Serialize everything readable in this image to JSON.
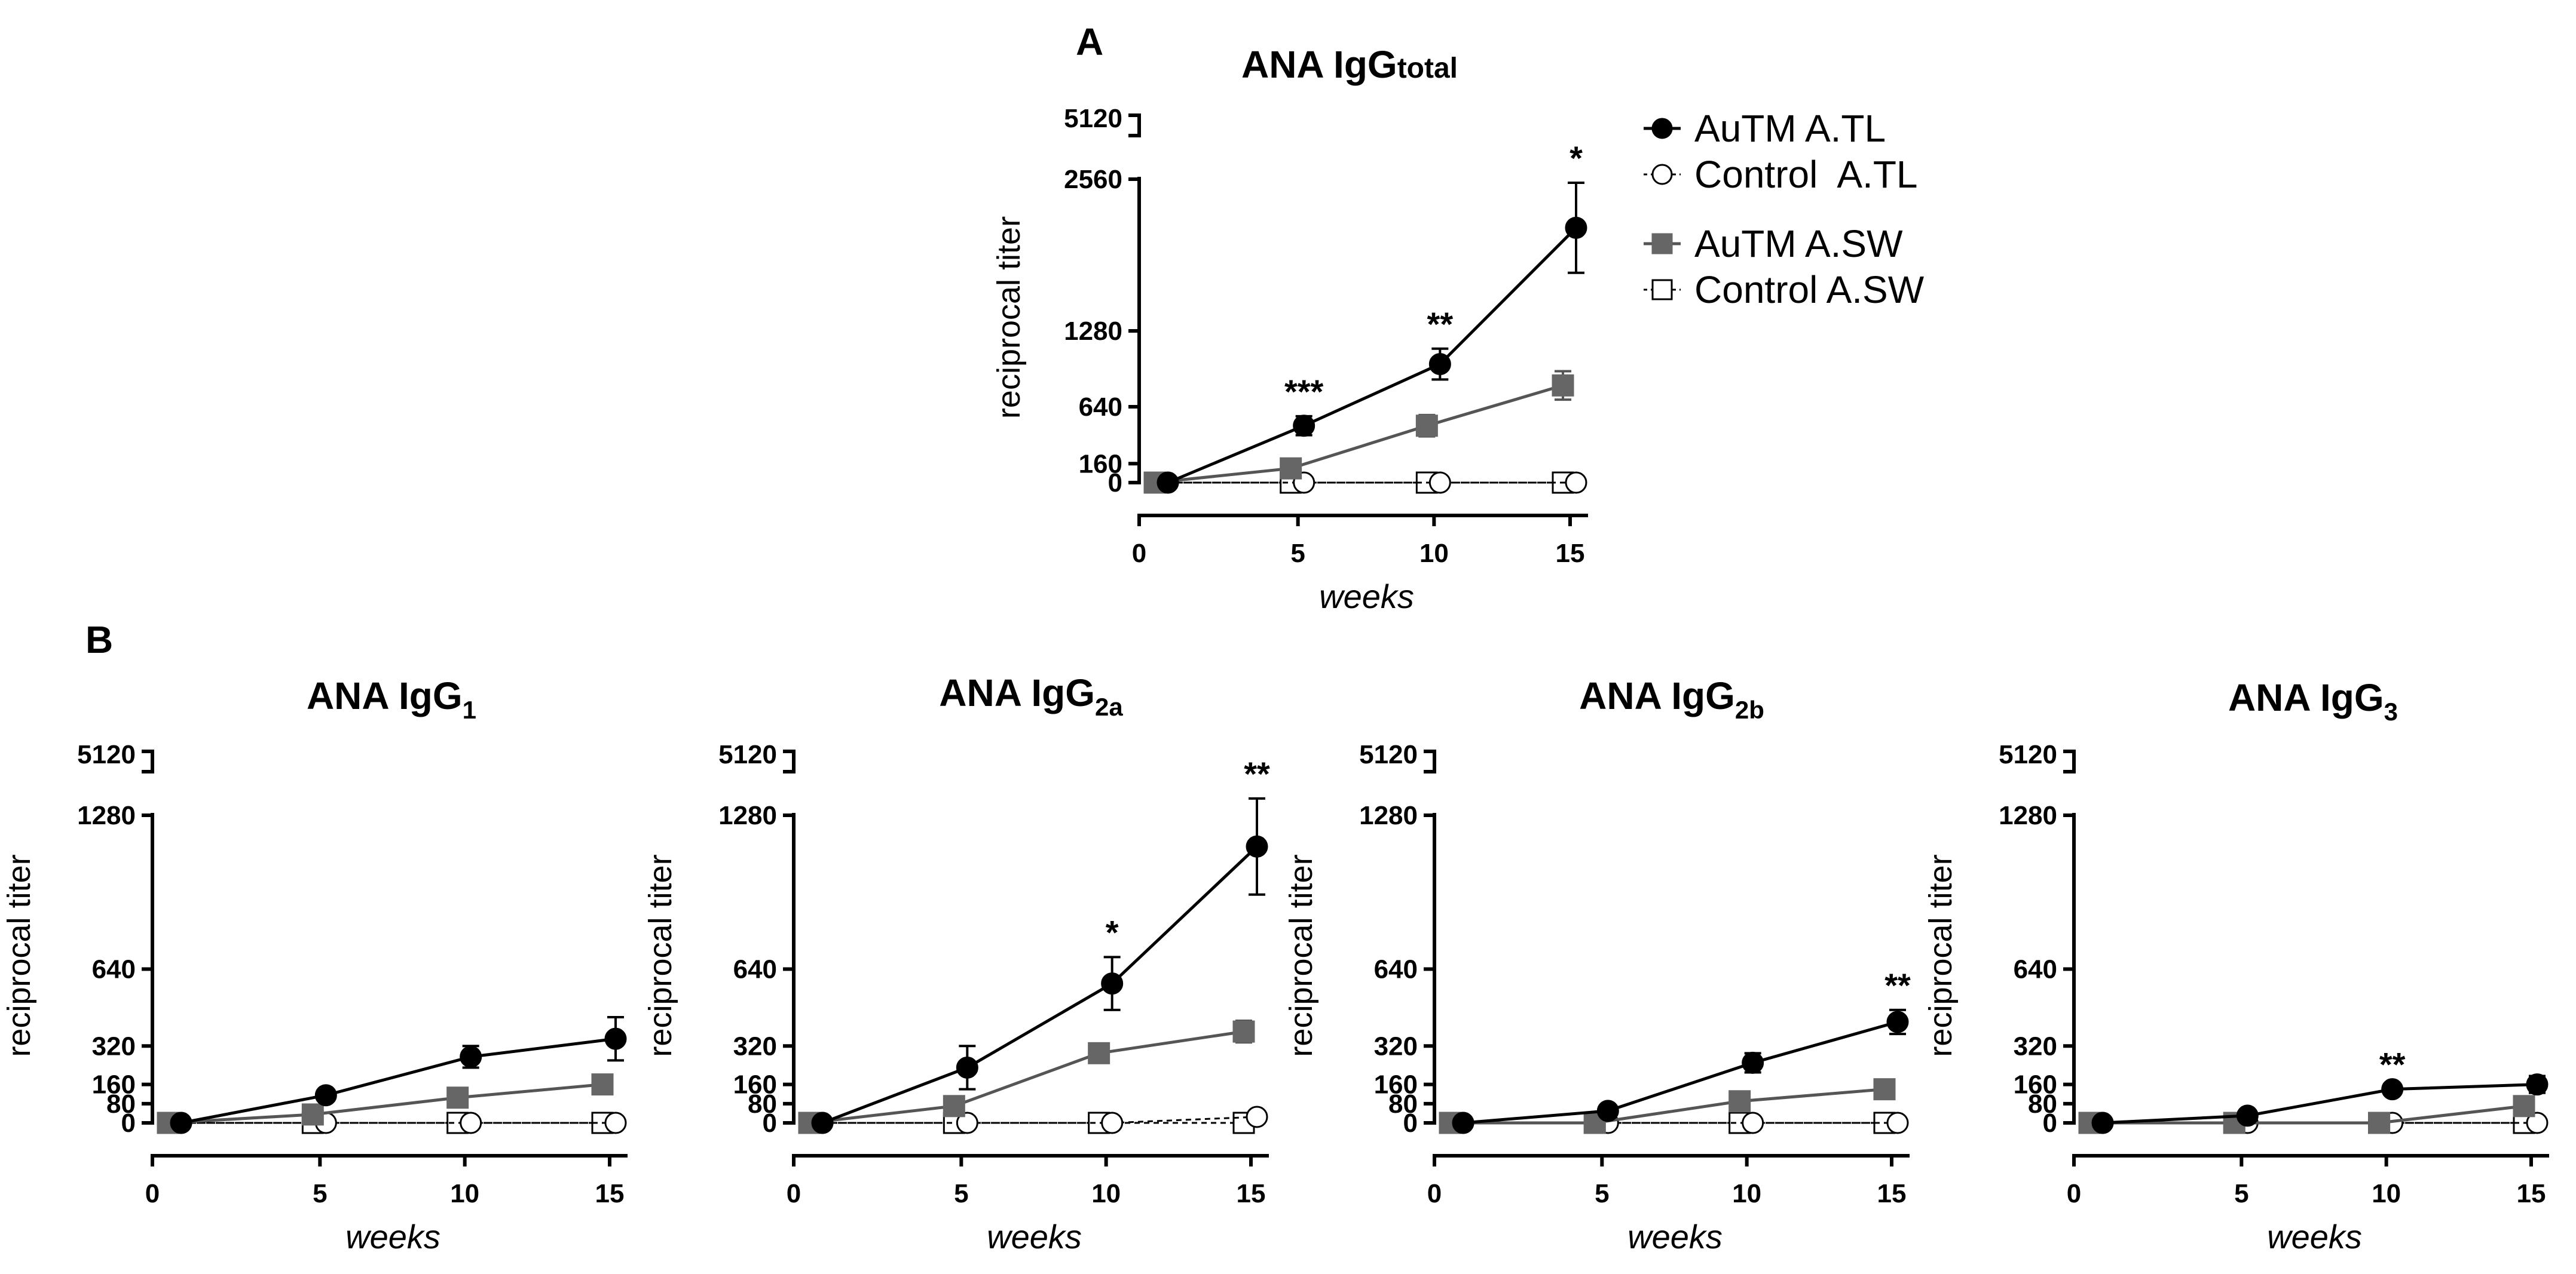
{
  "chart_data": [
    {
      "panel": "A",
      "type": "line",
      "title": "ANA IgG",
      "title_sub": "total",
      "xlabel": "weeks",
      "ylabel": "reciprocal titer",
      "x": [
        0,
        5,
        10,
        15
      ],
      "xticks": [
        "0",
        "5",
        "10",
        "15"
      ],
      "yticks": [
        0,
        160,
        640,
        1280,
        2560
      ],
      "ybreak_top": 5120,
      "ylim": [
        0,
        2560
      ],
      "series": [
        {
          "name": "AuTM A.TL",
          "marker": "circle",
          "fill": "#000000",
          "line": "#000000",
          "dashed": false,
          "values": [
            0,
            480,
            1000,
            2150
          ],
          "err": [
            0,
            80,
            130,
            380
          ]
        },
        {
          "name": "Control  A.TL",
          "marker": "circle",
          "fill": "#ffffff",
          "line": "#000000",
          "dashed": true,
          "values": [
            0,
            0,
            0,
            0
          ],
          "err": [
            0,
            0,
            0,
            0
          ]
        },
        {
          "name": "AuTM A.SW",
          "marker": "square",
          "fill": "#666666",
          "line": "#555555",
          "dashed": false,
          "values": [
            0,
            120,
            480,
            820
          ],
          "err": [
            0,
            30,
            90,
            120
          ]
        },
        {
          "name": "Control A.SW",
          "marker": "square",
          "fill": "#ffffff",
          "line": "#000000",
          "dashed": true,
          "values": [
            0,
            0,
            0,
            0
          ],
          "err": [
            0,
            0,
            0,
            0
          ]
        }
      ],
      "annotations": [
        {
          "x": 5,
          "text": "***"
        },
        {
          "x": 10,
          "text": "**"
        },
        {
          "x": 15,
          "text": "*"
        }
      ]
    },
    {
      "panel": "B",
      "type": "line",
      "title": "ANA IgG",
      "title_sub": "1",
      "xlabel": "weeks",
      "ylabel": "reciprocal titer",
      "x": [
        0,
        5,
        10,
        15
      ],
      "xticks": [
        "0",
        "5",
        "10",
        "15"
      ],
      "yticks": [
        0,
        80,
        160,
        320,
        640,
        1280
      ],
      "ybreak_top": 5120,
      "ylim": [
        0,
        1280
      ],
      "series": [
        {
          "name": "AuTM A.TL",
          "marker": "circle",
          "fill": "#000000",
          "line": "#000000",
          "dashed": false,
          "values": [
            0,
            115,
            275,
            350
          ],
          "err": [
            0,
            0,
            45,
            90
          ]
        },
        {
          "name": "Control  A.TL",
          "marker": "circle",
          "fill": "#ffffff",
          "line": "#000000",
          "dashed": true,
          "values": [
            0,
            0,
            0,
            0
          ],
          "err": [
            0,
            0,
            0,
            0
          ]
        },
        {
          "name": "AuTM A.SW",
          "marker": "square",
          "fill": "#666666",
          "line": "#555555",
          "dashed": false,
          "values": [
            0,
            35,
            105,
            160
          ],
          "err": [
            0,
            0,
            0,
            0
          ]
        },
        {
          "name": "Control A.SW",
          "marker": "square",
          "fill": "#ffffff",
          "line": "#000000",
          "dashed": true,
          "values": [
            0,
            0,
            0,
            0
          ],
          "err": [
            0,
            0,
            0,
            0
          ]
        }
      ],
      "annotations": []
    },
    {
      "type": "line",
      "title": "ANA IgG",
      "title_sub": "2a",
      "xlabel": "weeks",
      "ylabel": "reciprocal titer",
      "x": [
        0,
        5,
        10,
        15
      ],
      "xticks": [
        "0",
        "5",
        "10",
        "15"
      ],
      "yticks": [
        0,
        80,
        160,
        320,
        640,
        1280
      ],
      "ybreak_top": 5120,
      "ylim": [
        0,
        1280
      ],
      "series": [
        {
          "name": "AuTM A.TL",
          "marker": "circle",
          "fill": "#000000",
          "line": "#000000",
          "dashed": false,
          "values": [
            0,
            230,
            580,
            1150
          ],
          "err": [
            0,
            90,
            110,
            200
          ]
        },
        {
          "name": "Control  A.TL",
          "marker": "circle",
          "fill": "#ffffff",
          "line": "#000000",
          "dashed": true,
          "values": [
            0,
            0,
            0,
            25
          ],
          "err": [
            0,
            0,
            0,
            0
          ]
        },
        {
          "name": "AuTM A.SW",
          "marker": "square",
          "fill": "#666666",
          "line": "#555555",
          "dashed": false,
          "values": [
            0,
            70,
            290,
            380
          ],
          "err": [
            0,
            30,
            40,
            45
          ]
        },
        {
          "name": "Control A.SW",
          "marker": "square",
          "fill": "#ffffff",
          "line": "#000000",
          "dashed": true,
          "values": [
            0,
            0,
            0,
            0
          ],
          "err": [
            0,
            0,
            0,
            0
          ]
        }
      ],
      "annotations": [
        {
          "x": 10,
          "text": "*"
        },
        {
          "x": 15,
          "text": "**"
        }
      ]
    },
    {
      "type": "line",
      "title": "ANA IgG",
      "title_sub": "2b",
      "xlabel": "weeks",
      "ylabel": "reciprocal titer",
      "x": [
        0,
        5,
        10,
        15
      ],
      "xticks": [
        "0",
        "5",
        "10",
        "15"
      ],
      "yticks": [
        0,
        80,
        160,
        320,
        640,
        1280
      ],
      "ybreak_top": 5120,
      "ylim": [
        0,
        1280
      ],
      "series": [
        {
          "name": "AuTM A.TL",
          "marker": "circle",
          "fill": "#000000",
          "line": "#000000",
          "dashed": false,
          "values": [
            0,
            50,
            250,
            420
          ],
          "err": [
            0,
            0,
            40,
            50
          ]
        },
        {
          "name": "Control  A.TL",
          "marker": "circle",
          "fill": "#ffffff",
          "line": "#000000",
          "dashed": true,
          "values": [
            0,
            0,
            0,
            0
          ],
          "err": [
            0,
            0,
            0,
            0
          ]
        },
        {
          "name": "AuTM A.SW",
          "marker": "square",
          "fill": "#666666",
          "line": "#555555",
          "dashed": false,
          "values": [
            0,
            0,
            90,
            140
          ],
          "err": [
            0,
            0,
            0,
            0
          ]
        },
        {
          "name": "Control A.SW",
          "marker": "square",
          "fill": "#ffffff",
          "line": "#000000",
          "dashed": true,
          "values": [
            0,
            0,
            0,
            0
          ],
          "err": [
            0,
            0,
            0,
            0
          ]
        }
      ],
      "annotations": [
        {
          "x": 15,
          "text": "**"
        }
      ]
    },
    {
      "type": "line",
      "title": "ANA IgG",
      "title_sub": "3",
      "xlabel": "weeks",
      "ylabel": "reciprocal titer",
      "x": [
        0,
        5,
        10,
        15
      ],
      "xticks": [
        "0",
        "5",
        "10",
        "15"
      ],
      "yticks": [
        0,
        80,
        160,
        320,
        640,
        1280
      ],
      "ybreak_top": 5120,
      "ylim": [
        0,
        1280
      ],
      "series": [
        {
          "name": "AuTM A.TL",
          "marker": "circle",
          "fill": "#000000",
          "line": "#000000",
          "dashed": false,
          "values": [
            0,
            30,
            140,
            160
          ],
          "err": [
            0,
            0,
            0,
            35
          ]
        },
        {
          "name": "Control  A.TL",
          "marker": "circle",
          "fill": "#ffffff",
          "line": "#000000",
          "dashed": true,
          "values": [
            0,
            0,
            0,
            0
          ],
          "err": [
            0,
            0,
            0,
            0
          ]
        },
        {
          "name": "AuTM A.SW",
          "marker": "square",
          "fill": "#666666",
          "line": "#555555",
          "dashed": false,
          "values": [
            0,
            0,
            0,
            70
          ],
          "err": [
            0,
            0,
            0,
            0
          ]
        },
        {
          "name": "Control A.SW",
          "marker": "square",
          "fill": "#ffffff",
          "line": "#000000",
          "dashed": true,
          "values": [
            0,
            0,
            0,
            0
          ],
          "err": [
            0,
            0,
            0,
            0
          ]
        }
      ],
      "annotations": [
        {
          "x": 10,
          "text": "**"
        }
      ]
    }
  ],
  "legend": {
    "items": [
      {
        "name": "AuTM A.TL",
        "marker": "circle",
        "fill": "#000000",
        "line": "#000000",
        "dashed": false
      },
      {
        "name": "Control  A.TL",
        "marker": "circle",
        "fill": "#ffffff",
        "line": "#000000",
        "dashed": true
      },
      {
        "name": "AuTM A.SW",
        "marker": "square",
        "fill": "#666666",
        "line": "#555555",
        "dashed": false
      },
      {
        "name": "Control A.SW",
        "marker": "square",
        "fill": "#ffffff",
        "line": "#000000",
        "dashed": true
      }
    ]
  }
}
